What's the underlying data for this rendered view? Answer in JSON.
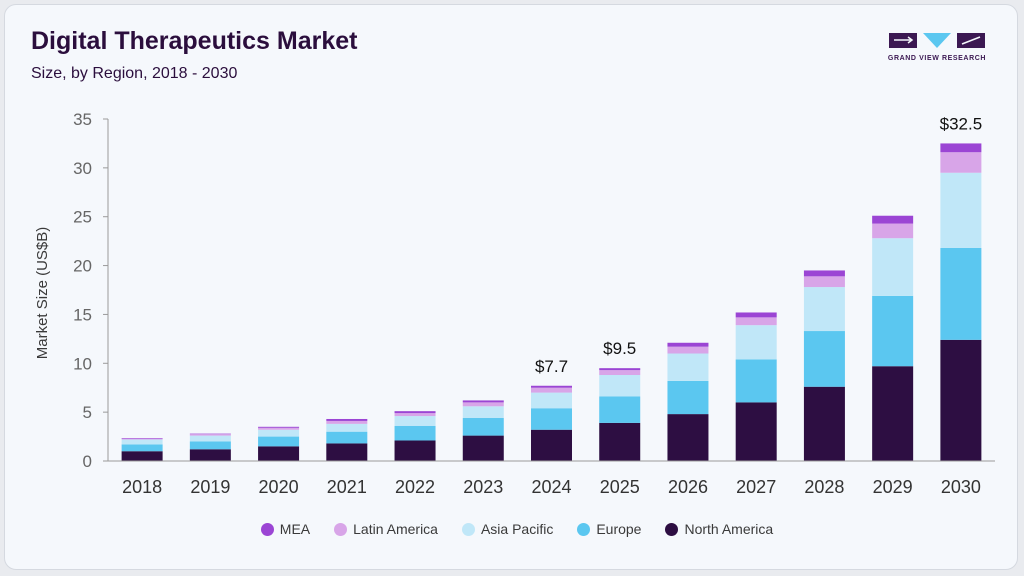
{
  "header": {
    "title": "Digital Therapeutics Market",
    "subtitle": "Size, by Region, 2018 - 2030"
  },
  "logo": {
    "text": "GRAND VIEW RESEARCH",
    "icon": "gvr-logo-icon"
  },
  "chart_data": {
    "type": "bar",
    "stacked": true,
    "title": "Digital Therapeutics Market",
    "subtitle": "Size, by Region, 2018 - 2030",
    "xlabel": "",
    "ylabel": "Market Size (US$B)",
    "ylim": [
      0,
      35
    ],
    "yticks": [
      0,
      5,
      10,
      15,
      20,
      25,
      30,
      35
    ],
    "grid": false,
    "legend_position": "bottom",
    "categories": [
      "2018",
      "2019",
      "2020",
      "2021",
      "2022",
      "2023",
      "2024",
      "2025",
      "2026",
      "2027",
      "2028",
      "2029",
      "2030"
    ],
    "series": [
      {
        "name": "North America",
        "color": "#2d0e42",
        "values": [
          1.0,
          1.2,
          1.5,
          1.8,
          2.1,
          2.6,
          3.2,
          3.9,
          4.8,
          6.0,
          7.6,
          9.7,
          12.4
        ]
      },
      {
        "name": "Europe",
        "color": "#5bc7f0",
        "values": [
          0.7,
          0.8,
          1.0,
          1.2,
          1.5,
          1.8,
          2.2,
          2.7,
          3.4,
          4.4,
          5.7,
          7.2,
          9.4
        ]
      },
      {
        "name": "Asia Pacific",
        "color": "#c0e7f8",
        "values": [
          0.5,
          0.6,
          0.7,
          0.8,
          1.0,
          1.2,
          1.6,
          2.2,
          2.8,
          3.5,
          4.5,
          5.9,
          7.7
        ]
      },
      {
        "name": "Latin America",
        "color": "#d8a5e8",
        "values": [
          0.1,
          0.15,
          0.2,
          0.3,
          0.3,
          0.4,
          0.5,
          0.5,
          0.7,
          0.8,
          1.1,
          1.5,
          2.1
        ]
      },
      {
        "name": "MEA",
        "color": "#9b45d4",
        "values": [
          0.05,
          0.05,
          0.1,
          0.2,
          0.2,
          0.2,
          0.2,
          0.2,
          0.4,
          0.5,
          0.6,
          0.8,
          0.9
        ]
      }
    ],
    "legend_order": [
      "MEA",
      "Latin America",
      "Asia Pacific",
      "Europe",
      "North America"
    ],
    "annotations": [
      {
        "category": "2024",
        "label": "$7.7"
      },
      {
        "category": "2025",
        "label": "$9.5"
      },
      {
        "category": "2030",
        "label": "$32.5"
      }
    ]
  }
}
